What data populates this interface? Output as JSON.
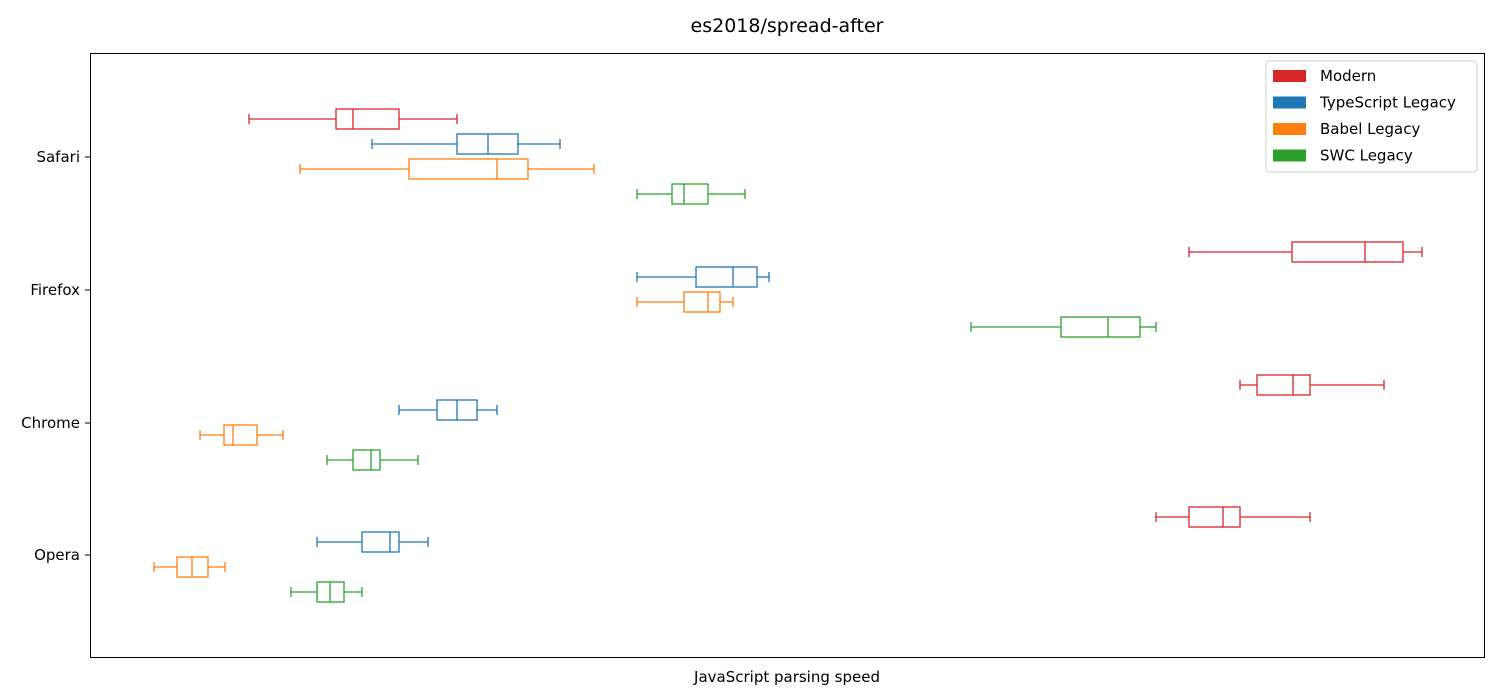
{
  "chart_data": {
    "type": "boxplot-horizontal",
    "title": "es2018/spread-after",
    "xlabel": "JavaScript parsing speed",
    "ylabel": "",
    "x_ticks_shown": false,
    "grid": false,
    "legend_position": "top-right",
    "categories": [
      "Safari",
      "Firefox",
      "Chrome",
      "Opera"
    ],
    "series": [
      {
        "name": "Modern",
        "color": "#d62728",
        "boxes": [
          {
            "category": "Safari",
            "min": 249,
            "q1": 336,
            "median": 353,
            "q3": 399,
            "max": 457
          },
          {
            "category": "Firefox",
            "min": 1189,
            "q1": 1292,
            "median": 1365,
            "q3": 1403,
            "max": 1422
          },
          {
            "category": "Chrome",
            "min": 1240,
            "q1": 1257,
            "median": 1293,
            "q3": 1310,
            "max": 1384
          },
          {
            "category": "Opera",
            "min": 1156,
            "q1": 1189,
            "median": 1223,
            "q3": 1240,
            "max": 1310
          }
        ]
      },
      {
        "name": "TypeScript Legacy",
        "color": "#1f77b4",
        "boxes": [
          {
            "category": "Safari",
            "min": 372,
            "q1": 457,
            "median": 488,
            "q3": 518,
            "max": 560
          },
          {
            "category": "Firefox",
            "min": 637,
            "q1": 696,
            "median": 733,
            "q3": 757,
            "max": 769
          },
          {
            "category": "Chrome",
            "min": 399,
            "q1": 437,
            "median": 457,
            "q3": 477,
            "max": 497
          },
          {
            "category": "Opera",
            "min": 317,
            "q1": 362,
            "median": 390,
            "q3": 399,
            "max": 428
          }
        ]
      },
      {
        "name": "Babel Legacy",
        "color": "#ff7f0e",
        "boxes": [
          {
            "category": "Safari",
            "min": 300,
            "q1": 409,
            "median": 497,
            "q3": 528,
            "max": 594
          },
          {
            "category": "Firefox",
            "min": 637,
            "q1": 684,
            "median": 708,
            "q3": 720,
            "max": 733
          },
          {
            "category": "Chrome",
            "min": 200,
            "q1": 224,
            "median": 233,
            "q3": 257,
            "max": 283
          },
          {
            "category": "Opera",
            "min": 154,
            "q1": 177,
            "median": 192,
            "q3": 208,
            "max": 225
          }
        ]
      },
      {
        "name": "SWC Legacy",
        "color": "#2ca02c",
        "boxes": [
          {
            "category": "Safari",
            "min": 637,
            "q1": 672,
            "median": 684,
            "q3": 708,
            "max": 745
          },
          {
            "category": "Firefox",
            "min": 971,
            "q1": 1061,
            "median": 1108,
            "q3": 1140,
            "max": 1156
          },
          {
            "category": "Chrome",
            "min": 327,
            "q1": 353,
            "median": 371,
            "q3": 380,
            "max": 418
          },
          {
            "category": "Opera",
            "min": 291,
            "q1": 317,
            "median": 330,
            "q3": 344,
            "max": 362
          }
        ]
      }
    ],
    "x_range": [
      90,
      1485
    ]
  }
}
